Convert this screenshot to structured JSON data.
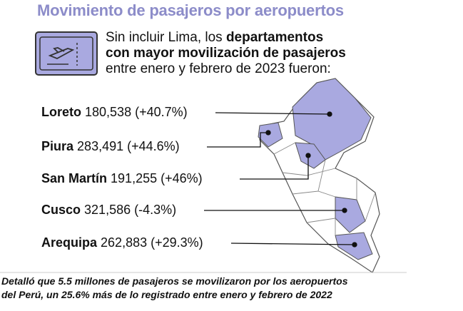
{
  "header": {
    "title": "Movimiento de pasajeros por aeropuertos"
  },
  "intro": {
    "lines": [
      [
        "Sin incluir Lima, los ",
        "departamentos"
      ],
      [
        "con mayor movilización de pasajeros"
      ],
      [
        "entre enero y febrero de 2023 fueron:"
      ]
    ]
  },
  "items": [
    {
      "name": "Loreto",
      "passengers": "180,538",
      "change": "(+40.7%)"
    },
    {
      "name": "Piura",
      "passengers": "283,491",
      "change": "(+44.6%)"
    },
    {
      "name": "San Martín",
      "passengers": "191,255",
      "change": "(+46%)"
    },
    {
      "name": "Cusco",
      "passengers": "321,586",
      "change": "(-4.3%)"
    },
    {
      "name": "Arequipa",
      "passengers": "262,883",
      "change": "(+29.3%)"
    }
  ],
  "caption": {
    "lines": [
      "Detalló que 5.5 millones de pasajeros se movilizaron por los aeropuertos",
      "del Perú, un 25.6% más de lo registrado entre enero y febrero de 2022"
    ]
  }
}
